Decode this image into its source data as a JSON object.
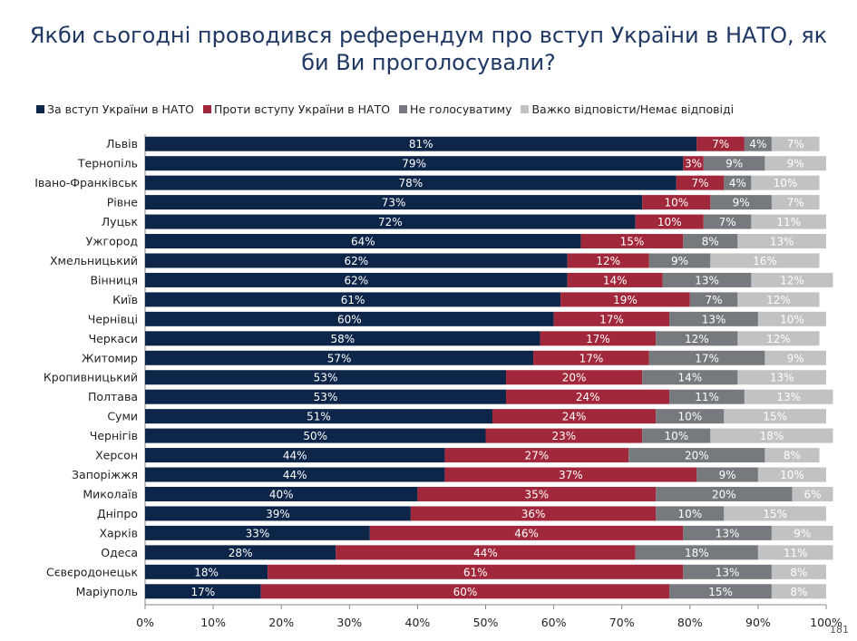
{
  "title_line1": "Якби сьогодні проводився референдум про вступ України в НАТО, як",
  "title_line2": "би Ви проголосували?",
  "page_number": "181",
  "colors": {
    "for": "#0d2549",
    "against": "#a1283a",
    "not_vote": "#767a7e",
    "hard_to_say": "#c0c2c4",
    "title": "#1f3864"
  },
  "chart_data": {
    "type": "bar",
    "orientation": "horizontal",
    "stacked": true,
    "categories": [
      "Львів",
      "Тернопіль",
      "Івано-Франківськ",
      "Рівне",
      "Луцьк",
      "Ужгород",
      "Хмельницький",
      "Вінниця",
      "Київ",
      "Чернівці",
      "Черкаси",
      "Житомир",
      "Кропивницький",
      "Полтава",
      "Суми",
      "Чернігів",
      "Херсон",
      "Запоріжжя",
      "Миколаїв",
      "Дніпро",
      "Харків",
      "Одеса",
      "Сєвєродонецьк",
      "Маріуполь"
    ],
    "series": [
      {
        "name": "За вступ України в НАТО",
        "values": [
          81,
          79,
          78,
          73,
          72,
          64,
          62,
          62,
          61,
          60,
          58,
          57,
          53,
          53,
          51,
          50,
          44,
          44,
          40,
          39,
          33,
          28,
          18,
          17
        ]
      },
      {
        "name": "Проти вступу України в НАТО",
        "values": [
          7,
          3,
          7,
          10,
          10,
          15,
          12,
          14,
          19,
          17,
          17,
          17,
          20,
          24,
          24,
          23,
          27,
          37,
          35,
          36,
          46,
          44,
          61,
          60
        ]
      },
      {
        "name": "Не голосуватиму",
        "values": [
          4,
          9,
          4,
          9,
          7,
          8,
          9,
          13,
          7,
          13,
          12,
          17,
          14,
          11,
          10,
          10,
          20,
          9,
          20,
          10,
          13,
          18,
          13,
          15
        ]
      },
      {
        "name": "Важко відповісти/Немає відповіді",
        "values": [
          7,
          9,
          10,
          7,
          11,
          13,
          16,
          12,
          12,
          10,
          12,
          9,
          13,
          13,
          15,
          18,
          8,
          10,
          6,
          15,
          9,
          11,
          8,
          8
        ]
      }
    ],
    "xlim": [
      0,
      100
    ],
    "xticks": [
      "0%",
      "10%",
      "20%",
      "30%",
      "40%",
      "50%",
      "60%",
      "70%",
      "80%",
      "90%",
      "100%"
    ],
    "legend_position": "top",
    "grid": false
  }
}
